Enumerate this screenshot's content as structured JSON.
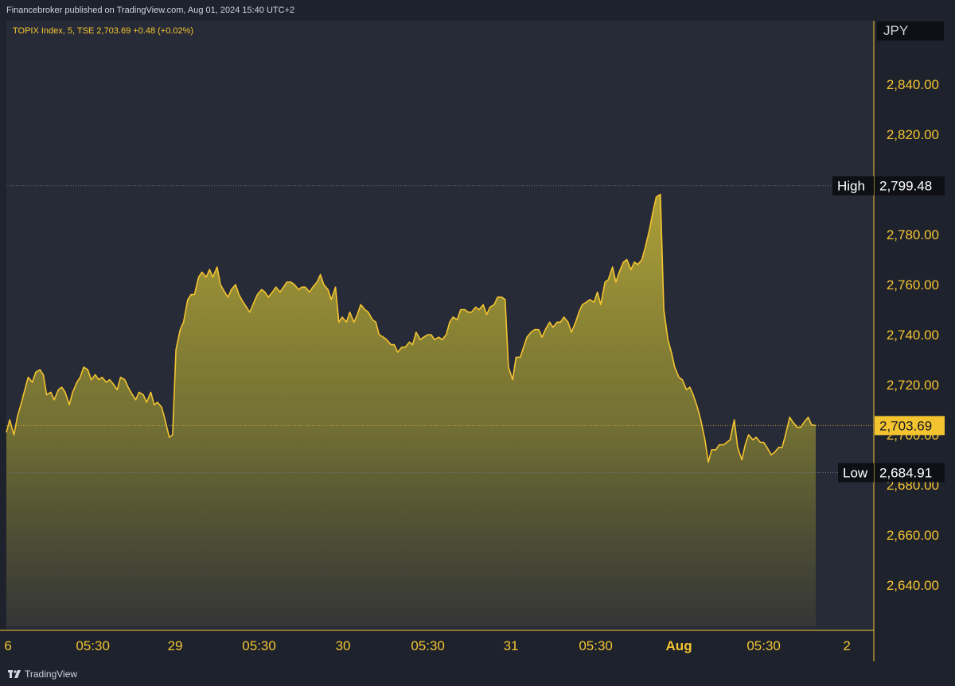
{
  "header": {
    "publisher": "Financebroker published on TradingView.com, Aug 01, 2024 15:40 UTC+2"
  },
  "symbol_line": "TOPIX Index, 5, TSE  2,703.69  +0.48 (+0.02%)",
  "currency": "JPY",
  "footer": {
    "brand": "TradingView"
  },
  "colors": {
    "line": "#f4c430",
    "axis_text": "#f4c430",
    "label_bg": "#0e1016",
    "background": "#272b37"
  },
  "chart_data": {
    "type": "area",
    "symbol": "TOPIX Index",
    "interval": "5",
    "exchange": "TSE",
    "last": 2703.69,
    "change": "+0.48",
    "change_pct": "+0.02%",
    "ylim": [
      2624,
      2849
    ],
    "yticks": [
      2640,
      2660,
      2680,
      2700,
      2720,
      2740,
      2760,
      2780,
      2800,
      2820,
      2840
    ],
    "ytick_labels": [
      "2,640.00",
      "2,660.00",
      "2,680.00",
      "2,700.00",
      "2,720.00",
      "2,740.00",
      "2,760.00",
      "2,780.00",
      "2,800.00",
      "2,820.00",
      "2,840.00"
    ],
    "xlim": [
      0,
      100
    ],
    "xticks": [
      {
        "x": 0.2,
        "label": "6",
        "bold": false
      },
      {
        "x": 10.3,
        "label": "05:30",
        "bold": false
      },
      {
        "x": 20.1,
        "label": "29",
        "bold": false
      },
      {
        "x": 30.1,
        "label": "05:30",
        "bold": false
      },
      {
        "x": 40.1,
        "label": "30",
        "bold": false
      },
      {
        "x": 50.2,
        "label": "05:30",
        "bold": false
      },
      {
        "x": 60.1,
        "label": "31",
        "bold": false
      },
      {
        "x": 70.2,
        "label": "05:30",
        "bold": false
      },
      {
        "x": 80.1,
        "label": "Aug",
        "bold": true
      },
      {
        "x": 90.2,
        "label": "05:30",
        "bold": false
      },
      {
        "x": 100.1,
        "label": "2",
        "bold": false
      }
    ],
    "high": {
      "label": "High",
      "value": 2799.48,
      "value_label": "2,799.48"
    },
    "low": {
      "label": "Low",
      "value": 2684.91,
      "value_label": "2,684.91"
    },
    "last_label": "2,703.69",
    "series": [
      {
        "values": [
          [
            0.0,
            2701
          ],
          [
            0.4,
            2706
          ],
          [
            0.9,
            2700
          ],
          [
            1.3,
            2707
          ],
          [
            1.8,
            2713
          ],
          [
            2.2,
            2718
          ],
          [
            2.6,
            2723
          ],
          [
            3.1,
            2721
          ],
          [
            3.5,
            2725
          ],
          [
            4.0,
            2726
          ],
          [
            4.4,
            2724
          ],
          [
            4.8,
            2716
          ],
          [
            5.3,
            2717
          ],
          [
            5.7,
            2714
          ],
          [
            6.2,
            2718
          ],
          [
            6.6,
            2719
          ],
          [
            7.0,
            2717
          ],
          [
            7.5,
            2712
          ],
          [
            7.9,
            2717
          ],
          [
            8.4,
            2721
          ],
          [
            8.8,
            2723
          ],
          [
            9.2,
            2727
          ],
          [
            9.7,
            2726
          ],
          [
            10.1,
            2722
          ],
          [
            10.6,
            2724
          ],
          [
            11.0,
            2722
          ],
          [
            11.4,
            2723
          ],
          [
            11.9,
            2721
          ],
          [
            12.3,
            2722
          ],
          [
            12.8,
            2720
          ],
          [
            13.2,
            2718
          ],
          [
            13.6,
            2723
          ],
          [
            14.1,
            2722
          ],
          [
            14.5,
            2719
          ],
          [
            15.0,
            2716
          ],
          [
            15.4,
            2714
          ],
          [
            15.8,
            2717
          ],
          [
            16.3,
            2716
          ],
          [
            16.7,
            2713
          ],
          [
            17.2,
            2717
          ],
          [
            17.6,
            2712
          ],
          [
            18.0,
            2713
          ],
          [
            18.5,
            2711
          ],
          [
            18.9,
            2706
          ],
          [
            19.4,
            2699
          ],
          [
            19.8,
            2700
          ],
          [
            20.2,
            2734
          ],
          [
            20.7,
            2742
          ],
          [
            21.1,
            2745
          ],
          [
            21.6,
            2754
          ],
          [
            22.0,
            2756
          ],
          [
            22.4,
            2756
          ],
          [
            22.9,
            2763
          ],
          [
            23.3,
            2765
          ],
          [
            23.8,
            2763
          ],
          [
            24.2,
            2766
          ],
          [
            24.6,
            2763
          ],
          [
            25.1,
            2767
          ],
          [
            25.5,
            2760
          ],
          [
            26.0,
            2757
          ],
          [
            26.4,
            2755
          ],
          [
            26.8,
            2758
          ],
          [
            27.3,
            2760
          ],
          [
            27.7,
            2756
          ],
          [
            28.2,
            2753
          ],
          [
            28.6,
            2751
          ],
          [
            29.0,
            2749
          ],
          [
            29.5,
            2753
          ],
          [
            29.9,
            2756
          ],
          [
            30.4,
            2758
          ],
          [
            30.8,
            2757
          ],
          [
            31.2,
            2755
          ],
          [
            31.7,
            2757
          ],
          [
            32.1,
            2759
          ],
          [
            32.6,
            2757
          ],
          [
            33.0,
            2759
          ],
          [
            33.4,
            2761
          ],
          [
            33.9,
            2761
          ],
          [
            34.3,
            2760
          ],
          [
            34.8,
            2758
          ],
          [
            35.2,
            2759
          ],
          [
            35.6,
            2759
          ],
          [
            36.1,
            2757
          ],
          [
            36.5,
            2759
          ],
          [
            37.0,
            2761
          ],
          [
            37.4,
            2764
          ],
          [
            37.8,
            2760
          ],
          [
            38.3,
            2758
          ],
          [
            38.7,
            2754
          ],
          [
            39.2,
            2759
          ],
          [
            39.6,
            2745
          ],
          [
            40.0,
            2747
          ],
          [
            40.5,
            2745
          ],
          [
            40.9,
            2749
          ],
          [
            41.4,
            2745
          ],
          [
            41.8,
            2748
          ],
          [
            42.2,
            2752
          ],
          [
            42.7,
            2750
          ],
          [
            43.1,
            2749
          ],
          [
            43.6,
            2746
          ],
          [
            44.0,
            2745
          ],
          [
            44.4,
            2740
          ],
          [
            44.9,
            2739
          ],
          [
            45.3,
            2738
          ],
          [
            45.8,
            2736
          ],
          [
            46.2,
            2736
          ],
          [
            46.6,
            2733
          ],
          [
            47.1,
            2735
          ],
          [
            47.5,
            2735
          ],
          [
            48.0,
            2737
          ],
          [
            48.4,
            2736
          ],
          [
            48.8,
            2741
          ],
          [
            49.3,
            2738
          ],
          [
            49.7,
            2739
          ],
          [
            50.2,
            2740
          ],
          [
            50.6,
            2740
          ],
          [
            51.0,
            2738
          ],
          [
            51.5,
            2739
          ],
          [
            51.9,
            2738
          ],
          [
            52.4,
            2740
          ],
          [
            52.8,
            2745
          ],
          [
            53.2,
            2747
          ],
          [
            53.7,
            2746
          ],
          [
            54.1,
            2750
          ],
          [
            54.6,
            2750
          ],
          [
            55.0,
            2749
          ],
          [
            55.4,
            2749
          ],
          [
            55.9,
            2751
          ],
          [
            56.3,
            2750
          ],
          [
            56.8,
            2752
          ],
          [
            57.2,
            2748
          ],
          [
            57.6,
            2751
          ],
          [
            58.1,
            2752
          ],
          [
            58.5,
            2755
          ],
          [
            59.0,
            2755
          ],
          [
            59.4,
            2754
          ],
          [
            59.8,
            2727
          ],
          [
            60.3,
            2722
          ],
          [
            60.7,
            2731
          ],
          [
            61.2,
            2731
          ],
          [
            61.6,
            2735
          ],
          [
            62.0,
            2739
          ],
          [
            62.5,
            2741
          ],
          [
            62.9,
            2742
          ],
          [
            63.4,
            2742
          ],
          [
            63.8,
            2739
          ],
          [
            64.2,
            2742
          ],
          [
            64.7,
            2745
          ],
          [
            65.1,
            2743
          ],
          [
            65.6,
            2745
          ],
          [
            66.0,
            2745
          ],
          [
            66.4,
            2747
          ],
          [
            66.9,
            2745
          ],
          [
            67.3,
            2741
          ],
          [
            67.8,
            2745
          ],
          [
            68.2,
            2749
          ],
          [
            68.6,
            2752
          ],
          [
            69.1,
            2753
          ],
          [
            69.5,
            2754
          ],
          [
            70.0,
            2753
          ],
          [
            70.4,
            2757
          ],
          [
            70.8,
            2752
          ],
          [
            71.3,
            2761
          ],
          [
            71.7,
            2762
          ],
          [
            72.2,
            2767
          ],
          [
            72.6,
            2761
          ],
          [
            73.0,
            2765
          ],
          [
            73.5,
            2769
          ],
          [
            73.9,
            2770
          ],
          [
            74.4,
            2766
          ],
          [
            74.8,
            2769
          ],
          [
            75.2,
            2768
          ],
          [
            75.7,
            2770
          ],
          [
            76.1,
            2775
          ],
          [
            76.6,
            2782
          ],
          [
            77.0,
            2789
          ],
          [
            77.4,
            2795
          ],
          [
            77.9,
            2796
          ],
          [
            78.3,
            2750
          ],
          [
            78.8,
            2738
          ],
          [
            79.2,
            2733
          ],
          [
            79.6,
            2727
          ],
          [
            80.1,
            2723
          ],
          [
            80.5,
            2722
          ],
          [
            81.0,
            2718
          ],
          [
            81.4,
            2719
          ],
          [
            81.8,
            2716
          ],
          [
            82.3,
            2711
          ],
          [
            82.7,
            2706
          ],
          [
            83.2,
            2698
          ],
          [
            83.6,
            2689
          ],
          [
            84.0,
            2694
          ],
          [
            84.5,
            2694
          ],
          [
            84.9,
            2696
          ],
          [
            85.4,
            2696
          ],
          [
            85.8,
            2697
          ],
          [
            86.2,
            2698
          ],
          [
            86.7,
            2706
          ],
          [
            87.1,
            2695
          ],
          [
            87.6,
            2690
          ],
          [
            88.0,
            2696
          ],
          [
            88.4,
            2700
          ],
          [
            88.9,
            2698
          ],
          [
            89.3,
            2699
          ],
          [
            89.8,
            2697
          ],
          [
            90.2,
            2697
          ],
          [
            90.6,
            2695
          ],
          [
            91.1,
            2692
          ],
          [
            91.5,
            2693
          ],
          [
            92.0,
            2695
          ],
          [
            92.4,
            2695
          ],
          [
            92.8,
            2700
          ],
          [
            93.3,
            2707
          ],
          [
            93.7,
            2705
          ],
          [
            94.2,
            2703
          ],
          [
            94.6,
            2703
          ],
          [
            95.0,
            2705
          ],
          [
            95.5,
            2707
          ],
          [
            95.9,
            2704
          ],
          [
            96.4,
            2703.69
          ]
        ]
      }
    ]
  }
}
